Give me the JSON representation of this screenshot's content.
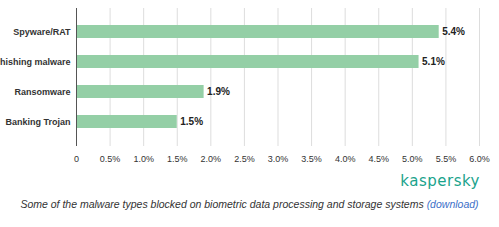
{
  "chart_data": {
    "type": "bar",
    "orientation": "horizontal",
    "categories": [
      "Spyware/RAT",
      "Phishing malware",
      "Ransomware",
      "Banking Trojan"
    ],
    "values": [
      5.4,
      5.1,
      1.9,
      1.5
    ],
    "value_labels": [
      "5.4%",
      "5.1%",
      "1.9%",
      "1.5%"
    ],
    "data_labels": true,
    "color": "#94cfa6",
    "xlim": [
      0,
      6
    ],
    "xticks": [
      0,
      {
        "value": 0.5,
        "label": "0.5%"
      },
      {
        "value": 1,
        "label": "1.0%"
      },
      {
        "value": 1.5,
        "label": "1.5%"
      },
      {
        "value": 2,
        "label": "2.0%"
      },
      {
        "value": 2.5,
        "label": "2.5%"
      },
      {
        "value": 3,
        "label": "3.0%"
      },
      {
        "value": 3.5,
        "label": "3.5%"
      },
      {
        "value": 4,
        "label": "4.0%"
      },
      {
        "value": 4.5,
        "label": "4.5%"
      },
      {
        "value": 5,
        "label": "5.0%"
      },
      {
        "value": 5.5,
        "label": "5.5%"
      },
      {
        "value": 6,
        "label": "6.0%"
      }
    ],
    "grid": true,
    "annotations": [
      "kaspersky"
    ],
    "caption": "Some of the malware types blocked on biometric data processing and storage systems",
    "caption_link": "(download)"
  }
}
